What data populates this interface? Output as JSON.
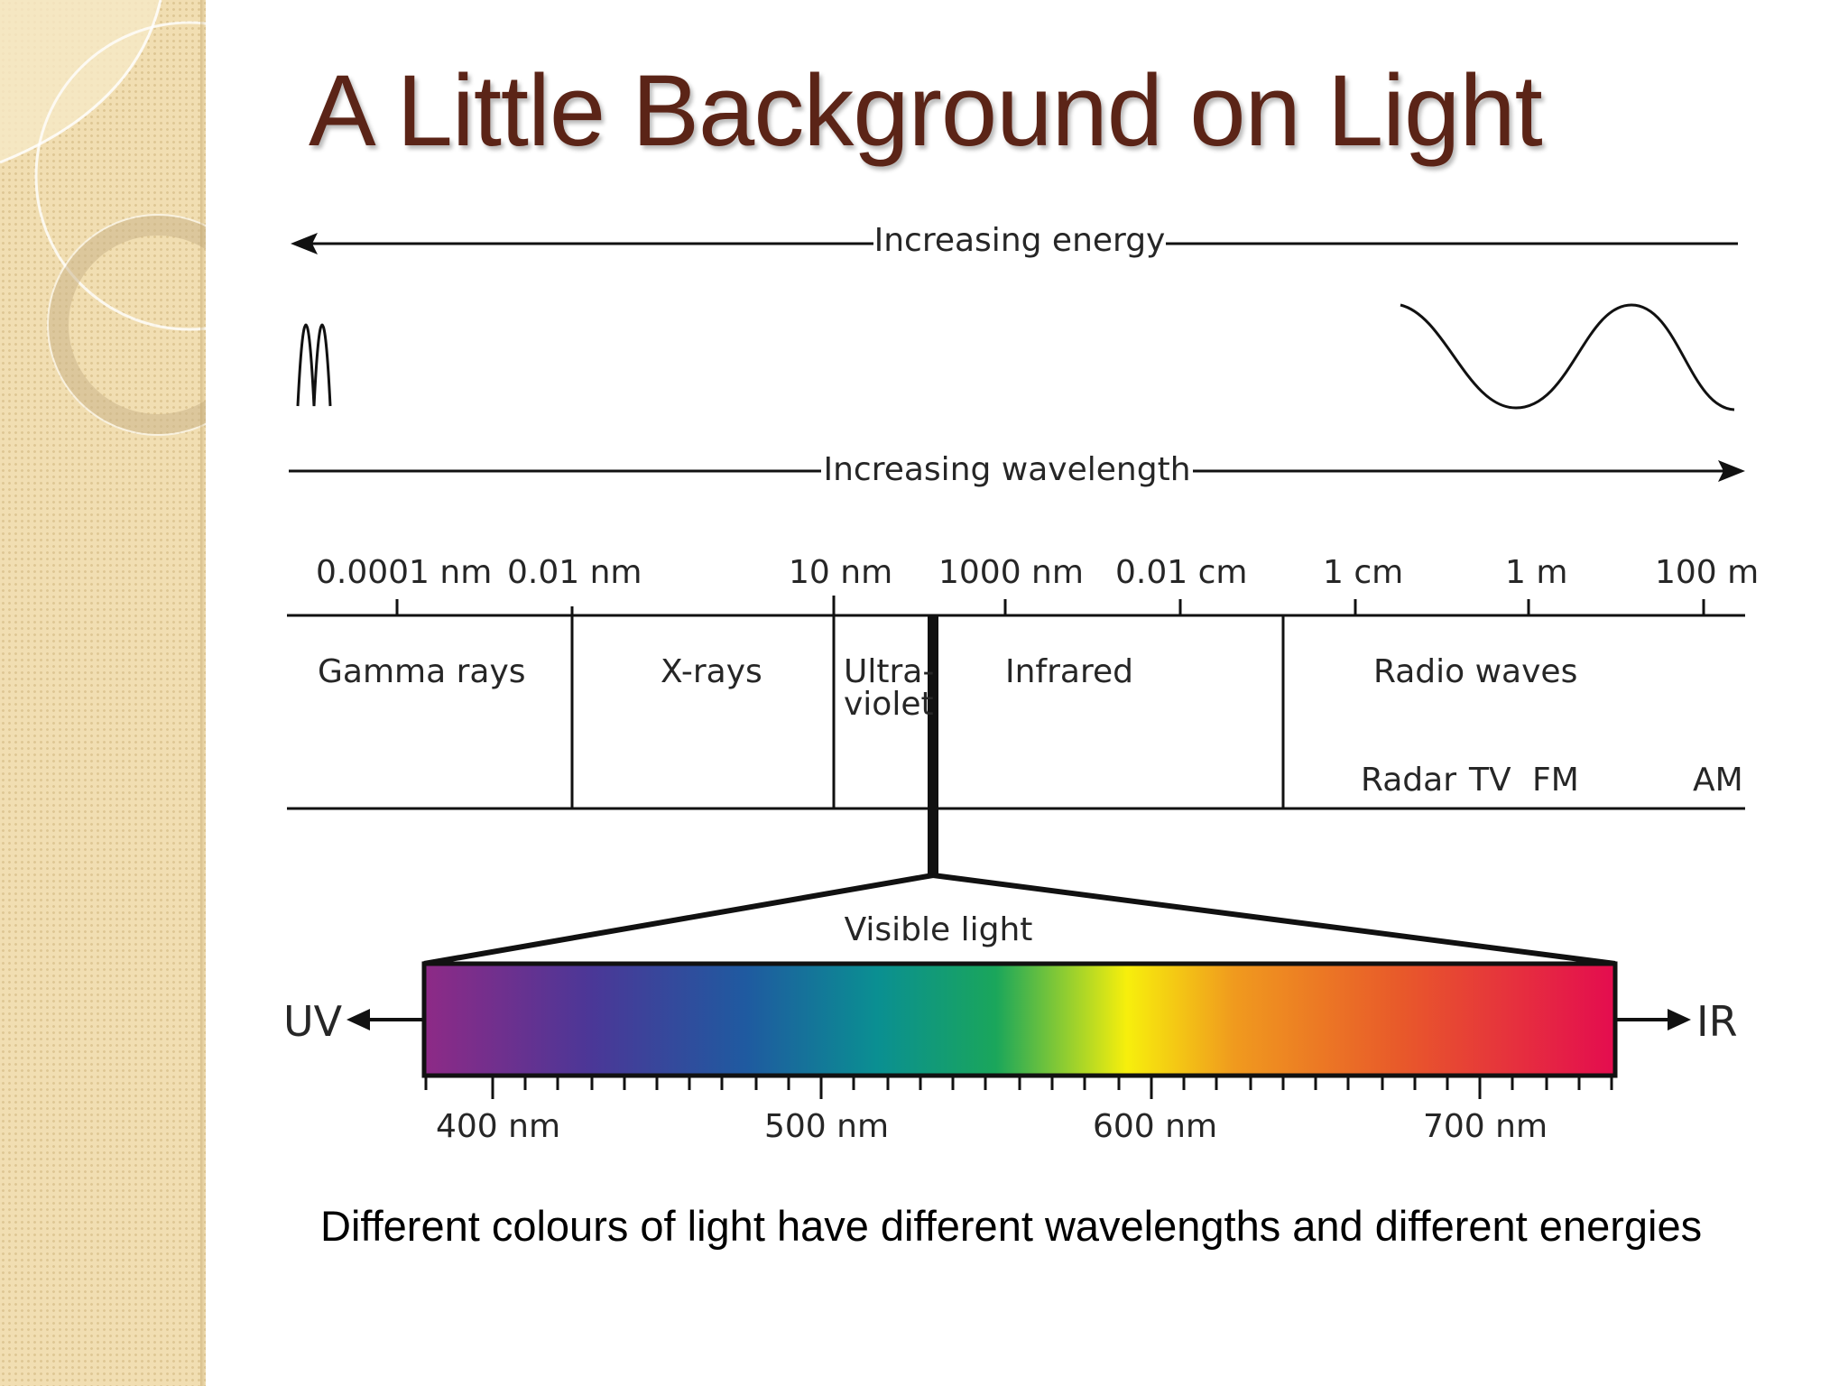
{
  "slide": {
    "title": "A Little Background on Light",
    "caption": "Different colours of light have different wavelengths and different energies"
  },
  "diagram": {
    "energy_label": "Increasing energy",
    "wavelength_label": "Increasing wavelength",
    "scale_ticks": [
      "0.0001 nm",
      "0.01 nm",
      "10 nm",
      "1000 nm",
      "0.01 cm",
      "1 cm",
      "1 m",
      "100 m"
    ],
    "bands": {
      "gamma": "Gamma rays",
      "xray": "X-rays",
      "uv_line1": "Ultra-",
      "uv_line2": "violet",
      "infrared": "Infrared",
      "radio": "Radio waves"
    },
    "radio_sub": [
      "Radar",
      "TV",
      "FM",
      "AM"
    ],
    "visible_label": "Visible light",
    "uv_label": "UV",
    "ir_label": "IR",
    "visible_ticks": [
      "400 nm",
      "500 nm",
      "600 nm",
      "700 nm"
    ],
    "spectrum_colors": [
      "#8e2a86",
      "#4b3797",
      "#1f5aa0",
      "#0a8f92",
      "#1aa65b",
      "#f7ef0c",
      "#f09a1e",
      "#e8592a",
      "#e40c4f"
    ]
  }
}
